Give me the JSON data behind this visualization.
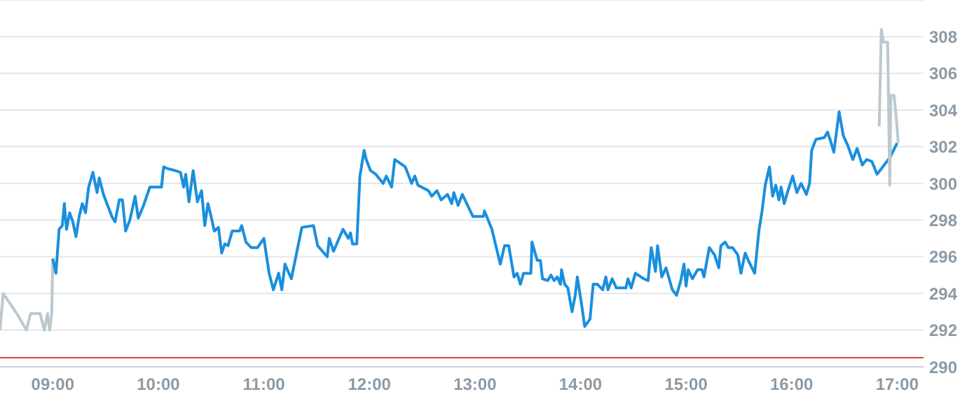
{
  "chart_data": {
    "type": "line",
    "xlim": [
      8.5,
      17.25
    ],
    "ylim": [
      290,
      310
    ],
    "xticks": [
      {
        "value": 9,
        "label": "09:00"
      },
      {
        "value": 10,
        "label": "10:00"
      },
      {
        "value": 11,
        "label": "11:00"
      },
      {
        "value": 12,
        "label": "12:00"
      },
      {
        "value": 13,
        "label": "13:00"
      },
      {
        "value": 14,
        "label": "14:00"
      },
      {
        "value": 15,
        "label": "15:00"
      },
      {
        "value": 16,
        "label": "16:00"
      },
      {
        "value": 17,
        "label": "17:00"
      }
    ],
    "yticks": [
      290,
      292,
      294,
      296,
      298,
      300,
      302,
      304,
      306,
      308
    ],
    "grid": "y",
    "marker": "none",
    "line_style": "solid",
    "ref_lines": [
      {
        "axis": "y",
        "value": 290.5,
        "color": "#d9463c"
      }
    ],
    "series": [
      {
        "color": "#bcc8cf",
        "x": [
          8.5,
          8.53,
          8.66,
          8.75,
          8.79,
          8.88,
          8.92,
          8.95,
          8.97,
          8.99,
          9.0
        ],
        "values": [
          292,
          294,
          292.9,
          292,
          292.9,
          292.9,
          292,
          292.9,
          292,
          292.9,
          295.9
        ]
      },
      {
        "color": "#1a8fdd",
        "x": [
          9.0,
          9.03,
          9.06,
          9.09,
          9.11,
          9.13,
          9.16,
          9.19,
          9.22,
          9.25,
          9.28,
          9.31,
          9.34,
          9.38,
          9.42,
          9.44,
          9.48,
          9.56,
          9.59,
          9.63,
          9.66,
          9.69,
          9.73,
          9.78,
          9.81,
          9.86,
          9.92,
          10.03,
          10.05,
          10.09,
          10.16,
          10.21,
          10.24,
          10.26,
          10.29,
          10.33,
          10.37,
          10.41,
          10.44,
          10.47,
          10.5,
          10.53,
          10.57,
          10.6,
          10.63,
          10.66,
          10.7,
          10.77,
          10.79,
          10.83,
          10.88,
          10.94,
          11.0,
          11.05,
          11.09,
          11.14,
          11.17,
          11.2,
          11.26,
          11.36,
          11.47,
          11.51,
          11.6,
          11.62,
          11.66,
          11.75,
          11.8,
          11.82,
          11.84,
          11.88,
          11.91,
          11.95,
          11.97,
          12.01,
          12.06,
          12.13,
          12.16,
          12.21,
          12.24,
          12.34,
          12.4,
          12.43,
          12.46,
          12.56,
          12.59,
          12.64,
          12.68,
          12.74,
          12.78,
          12.8,
          12.84,
          12.88,
          12.98,
          13.08,
          13.09,
          13.16,
          13.24,
          13.28,
          13.32,
          13.37,
          13.4,
          13.43,
          13.46,
          13.53,
          13.54,
          13.59,
          13.62,
          13.64,
          13.69,
          13.72,
          13.75,
          13.78,
          13.81,
          13.82,
          13.85,
          13.88,
          13.92,
          13.95,
          13.97,
          14.01,
          14.04,
          14.09,
          14.12,
          14.16,
          14.21,
          14.24,
          14.26,
          14.3,
          14.34,
          14.43,
          14.45,
          14.48,
          14.52,
          14.6,
          14.64,
          14.67,
          14.71,
          14.73,
          14.77,
          14.81,
          14.87,
          14.91,
          14.95,
          14.98,
          15.0,
          15.02,
          15.06,
          15.11,
          15.15,
          15.17,
          15.22,
          15.27,
          15.31,
          15.33,
          15.37,
          15.4,
          15.44,
          15.49,
          15.52,
          15.56,
          15.59,
          15.65,
          15.69,
          15.72,
          15.75,
          15.79,
          15.82,
          15.85,
          15.88,
          15.9,
          15.93,
          15.96,
          16.01,
          16.05,
          16.09,
          16.14,
          16.17,
          16.19,
          16.23,
          16.31,
          16.34,
          16.37,
          16.4,
          16.45,
          16.49,
          16.53,
          16.58,
          16.62,
          16.67,
          16.71,
          16.76,
          16.81,
          16.93,
          17.0
        ],
        "values": [
          295.9,
          295.1,
          297.5,
          297.7,
          298.9,
          297.5,
          298.4,
          297.9,
          297.1,
          298.2,
          298.9,
          298.4,
          299.8,
          300.6,
          299.5,
          300.3,
          299.4,
          298.2,
          297.9,
          299.1,
          299.1,
          297.4,
          298.0,
          299.3,
          298.1,
          298.8,
          299.8,
          299.8,
          300.9,
          300.8,
          300.7,
          300.6,
          299.8,
          300.5,
          299.0,
          300.7,
          299.0,
          299.6,
          297.7,
          298.9,
          298.2,
          297.4,
          297.6,
          296.2,
          296.7,
          296.6,
          297.4,
          297.4,
          297.7,
          296.8,
          296.5,
          296.5,
          297.0,
          295.1,
          294.2,
          295.1,
          294.2,
          295.6,
          294.8,
          297.6,
          297.7,
          296.6,
          296.0,
          297.0,
          296.3,
          297.5,
          297.0,
          297.3,
          296.7,
          296.7,
          300.4,
          301.8,
          301.3,
          300.7,
          300.5,
          300.0,
          300.4,
          299.8,
          301.3,
          300.9,
          300.0,
          300.4,
          299.9,
          299.6,
          299.3,
          299.6,
          299.1,
          299.4,
          298.9,
          299.5,
          298.8,
          299.4,
          298.2,
          298.2,
          298.5,
          297.5,
          295.6,
          296.6,
          296.6,
          294.9,
          295.1,
          294.5,
          295.1,
          295.1,
          296.8,
          295.8,
          295.8,
          294.8,
          294.7,
          295.0,
          294.7,
          294.9,
          294.5,
          295.3,
          294.5,
          294.3,
          293.0,
          293.9,
          294.9,
          293.4,
          292.2,
          292.6,
          294.5,
          294.5,
          294.2,
          294.9,
          294.2,
          294.8,
          294.3,
          294.3,
          294.8,
          294.3,
          295.1,
          294.8,
          294.7,
          296.5,
          295.2,
          296.6,
          294.9,
          295.4,
          294.2,
          293.9,
          294.7,
          295.6,
          294.4,
          295.3,
          294.8,
          295.3,
          295.3,
          294.9,
          296.5,
          296.1,
          295.4,
          296.6,
          296.8,
          296.5,
          296.5,
          296.1,
          295.1,
          296.2,
          295.8,
          295.1,
          297.4,
          298.5,
          299.9,
          300.9,
          299.3,
          299.9,
          299.1,
          299.8,
          298.9,
          299.5,
          300.4,
          299.5,
          300.0,
          299.4,
          300.0,
          301.8,
          302.4,
          302.5,
          302.8,
          302.3,
          301.7,
          303.9,
          302.6,
          302.1,
          301.3,
          301.9,
          301.0,
          301.3,
          301.2,
          300.5,
          301.4,
          302.2
        ]
      },
      {
        "color": "#bcc8cf",
        "x": [
          16.83,
          16.85,
          16.87,
          16.91,
          16.93,
          16.94,
          16.97,
          16.99,
          17.01
        ],
        "values": [
          303.1,
          308.4,
          307.7,
          307.7,
          299.9,
          304.8,
          304.8,
          303.7,
          302.2
        ]
      }
    ]
  }
}
